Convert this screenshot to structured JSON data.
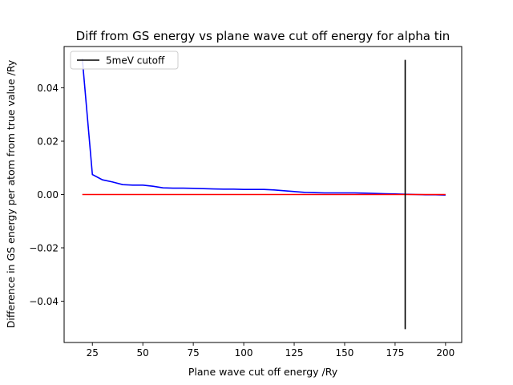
{
  "chart_data": {
    "type": "line",
    "title": "Diff from GS energy vs plane wave cut off energy for alpha tin",
    "xlabel": "Plane wave cut off energy /Ry",
    "ylabel": "Difference in GS energy per atom from true value /Ry",
    "xlim": [
      11,
      208
    ],
    "ylim": [
      -0.0555,
      0.0555
    ],
    "xticks": [
      25,
      50,
      75,
      100,
      125,
      150,
      175,
      200
    ],
    "yticks": [
      -0.04,
      -0.02,
      0.0,
      0.02,
      0.04
    ],
    "ytick_labels": [
      "−0.04",
      "−0.02",
      "0.00",
      "0.02",
      "0.04"
    ],
    "grid": false,
    "legend_position": "upper left",
    "series": [
      {
        "color": "#0000ff",
        "x": [
          20,
          25,
          30,
          35,
          40,
          45,
          50,
          55,
          60,
          65,
          70,
          75,
          80,
          85,
          90,
          95,
          100,
          105,
          110,
          115,
          120,
          125,
          130,
          135,
          140,
          145,
          150,
          155,
          160,
          165,
          170,
          175,
          180,
          185,
          190,
          195,
          200
        ],
        "y": [
          0.051,
          0.0075,
          0.0055,
          0.0047,
          0.0037,
          0.0035,
          0.0035,
          0.0031,
          0.0025,
          0.0024,
          0.0024,
          0.0023,
          0.0022,
          0.0021,
          0.002,
          0.002,
          0.0019,
          0.0019,
          0.0019,
          0.0017,
          0.0014,
          0.0011,
          0.0008,
          0.0007,
          0.0006,
          0.0006,
          0.0006,
          0.0006,
          0.0005,
          0.0004,
          0.0003,
          0.0002,
          0.0001,
          0.0,
          -0.0001,
          -0.0001,
          -0.0002
        ]
      },
      {
        "color": "#ff0000",
        "x": [
          20,
          200
        ],
        "y": [
          0.0,
          0.0
        ]
      },
      {
        "name": "5meV cutoff",
        "color": "#000000",
        "x": [
          180,
          180
        ],
        "y": [
          -0.0505,
          0.0505
        ]
      }
    ]
  }
}
